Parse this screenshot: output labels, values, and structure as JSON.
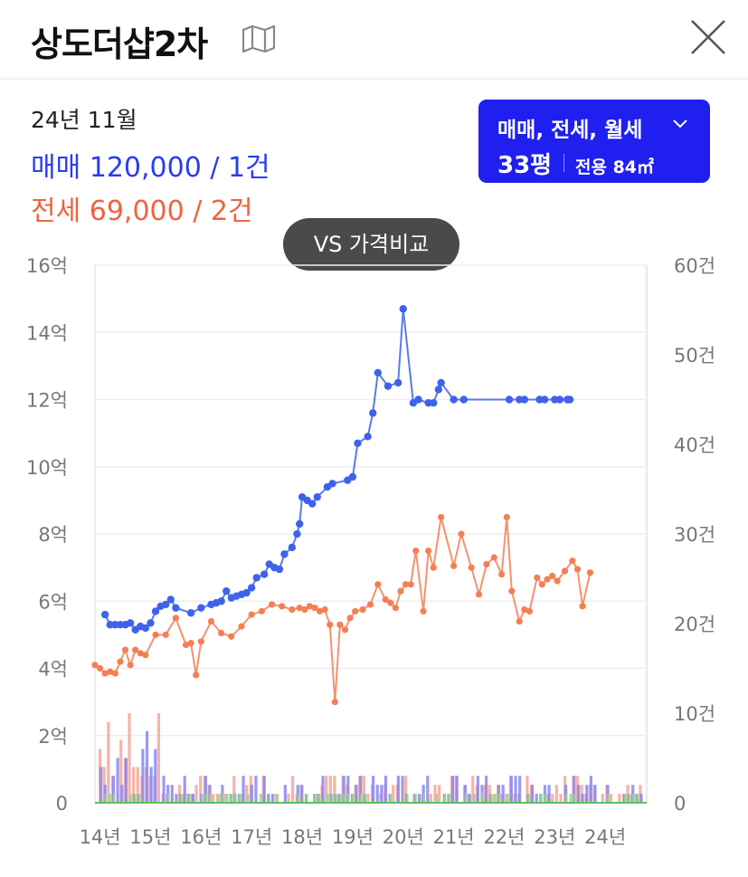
{
  "header": {
    "title": "상도더샵2차"
  },
  "summary": {
    "period": "24년 11월",
    "sale_text": "매매 120,000 / 1건",
    "jeonse_text": "전세 69,000 / 2건"
  },
  "filter": {
    "types": "매매, 전세, 월세",
    "size": "33평",
    "area": "전용 84㎡"
  },
  "vs_button": {
    "label": "VS 가격비교"
  },
  "colors": {
    "sale": "#3e63ea",
    "jeonse": "#f47f55",
    "monthly": "#3fbf3f",
    "filter_bg": "#1f1ff0"
  },
  "chart_data": {
    "type": "line",
    "left_axis": {
      "min": 0,
      "max": 16,
      "unit": "억",
      "ticks": [
        "0",
        "2억",
        "4억",
        "6억",
        "8억",
        "10억",
        "12억",
        "14억",
        "16억"
      ]
    },
    "right_axis": {
      "min": 0,
      "max": 60,
      "unit": "건",
      "ticks": [
        "0",
        "10건",
        "20건",
        "30건",
        "40건",
        "50건",
        "60건"
      ]
    },
    "x_ticks": [
      "14년",
      "15년",
      "16년",
      "17년",
      "18년",
      "19년",
      "20년",
      "21년",
      "22년",
      "23년",
      "24년"
    ],
    "x_range": [
      2014.0,
      2024.92
    ],
    "grid": true,
    "series": [
      {
        "name": "매매",
        "kind": "line",
        "color": "#3e63ea",
        "x": [
          2014.2,
          2014.3,
          2014.4,
          2014.5,
          2014.6,
          2014.7,
          2014.8,
          2014.9,
          2015.0,
          2015.1,
          2015.2,
          2015.3,
          2015.4,
          2015.5,
          2015.6,
          2015.9,
          2016.1,
          2016.3,
          2016.4,
          2016.5,
          2016.6,
          2016.7,
          2016.8,
          2016.9,
          2017.0,
          2017.1,
          2017.2,
          2017.35,
          2017.45,
          2017.55,
          2017.65,
          2017.75,
          2017.9,
          2018.0,
          2018.05,
          2018.1,
          2018.2,
          2018.3,
          2018.4,
          2018.6,
          2018.7,
          2019.0,
          2019.1,
          2019.2,
          2019.4,
          2019.5,
          2019.6,
          2019.8,
          2020.0,
          2020.1,
          2020.3,
          2020.4,
          2020.6,
          2020.7,
          2020.8,
          2020.85,
          2021.1,
          2021.3,
          2022.2,
          2022.4,
          2022.5,
          2022.8,
          2022.9,
          2023.1,
          2023.2,
          2023.35,
          2023.4
        ],
        "y": [
          5.6,
          5.3,
          5.3,
          5.3,
          5.3,
          5.35,
          5.15,
          5.25,
          5.2,
          5.35,
          5.7,
          5.85,
          5.9,
          6.05,
          5.8,
          5.65,
          5.8,
          5.9,
          5.95,
          6.0,
          6.3,
          6.1,
          6.15,
          6.2,
          6.25,
          6.4,
          6.7,
          6.8,
          7.1,
          7.0,
          6.95,
          7.4,
          7.6,
          8.0,
          8.3,
          9.1,
          9.0,
          8.9,
          9.1,
          9.4,
          9.5,
          9.6,
          9.7,
          10.7,
          10.9,
          11.6,
          12.8,
          12.4,
          12.5,
          14.7,
          11.9,
          12.0,
          11.9,
          11.9,
          12.3,
          12.5,
          12.0,
          12.0,
          12.0,
          12.0,
          12.0,
          12.0,
          12.0,
          12.0,
          12.0,
          12.0,
          12.0
        ]
      },
      {
        "name": "전세",
        "kind": "line",
        "color": "#f47f55",
        "x": [
          2014.0,
          2014.1,
          2014.2,
          2014.3,
          2014.4,
          2014.5,
          2014.6,
          2014.7,
          2014.8,
          2014.9,
          2015.0,
          2015.2,
          2015.4,
          2015.6,
          2015.8,
          2015.9,
          2016.0,
          2016.1,
          2016.3,
          2016.5,
          2016.7,
          2016.9,
          2017.1,
          2017.3,
          2017.5,
          2017.7,
          2017.9,
          2018.05,
          2018.15,
          2018.25,
          2018.35,
          2018.45,
          2018.55,
          2018.65,
          2018.75,
          2018.85,
          2018.95,
          2019.05,
          2019.15,
          2019.3,
          2019.45,
          2019.6,
          2019.75,
          2019.85,
          2019.95,
          2020.05,
          2020.15,
          2020.25,
          2020.35,
          2020.5,
          2020.6,
          2020.7,
          2020.85,
          2021.1,
          2021.25,
          2021.45,
          2021.6,
          2021.75,
          2021.9,
          2022.05,
          2022.15,
          2022.25,
          2022.4,
          2022.5,
          2022.6,
          2022.75,
          2022.85,
          2022.95,
          2023.05,
          2023.15,
          2023.3,
          2023.45,
          2023.55,
          2023.65,
          2023.8
        ],
        "y": [
          4.1,
          4.0,
          3.85,
          3.9,
          3.85,
          4.2,
          4.55,
          4.1,
          4.55,
          4.45,
          4.4,
          5.0,
          5.0,
          5.5,
          4.7,
          4.75,
          3.8,
          4.8,
          5.4,
          5.05,
          4.95,
          5.25,
          5.6,
          5.7,
          5.9,
          5.85,
          5.75,
          5.8,
          5.75,
          5.85,
          5.8,
          5.7,
          5.75,
          5.3,
          3.0,
          5.3,
          5.15,
          5.5,
          5.7,
          5.75,
          5.9,
          6.5,
          6.05,
          5.95,
          5.8,
          6.3,
          6.5,
          6.5,
          7.5,
          5.7,
          7.5,
          7.0,
          8.5,
          7.05,
          8.0,
          7.0,
          6.2,
          7.1,
          7.3,
          6.8,
          8.5,
          6.3,
          5.4,
          5.75,
          5.7,
          6.7,
          6.5,
          6.65,
          6.75,
          6.6,
          6.9,
          7.2,
          6.95,
          5.85,
          6.85
        ]
      }
    ],
    "volume_series": [
      {
        "name": "매매 거래량",
        "color": "#8a86f2"
      },
      {
        "name": "전세 거래량",
        "color": "#f5a696"
      },
      {
        "name": "월세 거래량",
        "color": "#8fd88f"
      }
    ]
  }
}
